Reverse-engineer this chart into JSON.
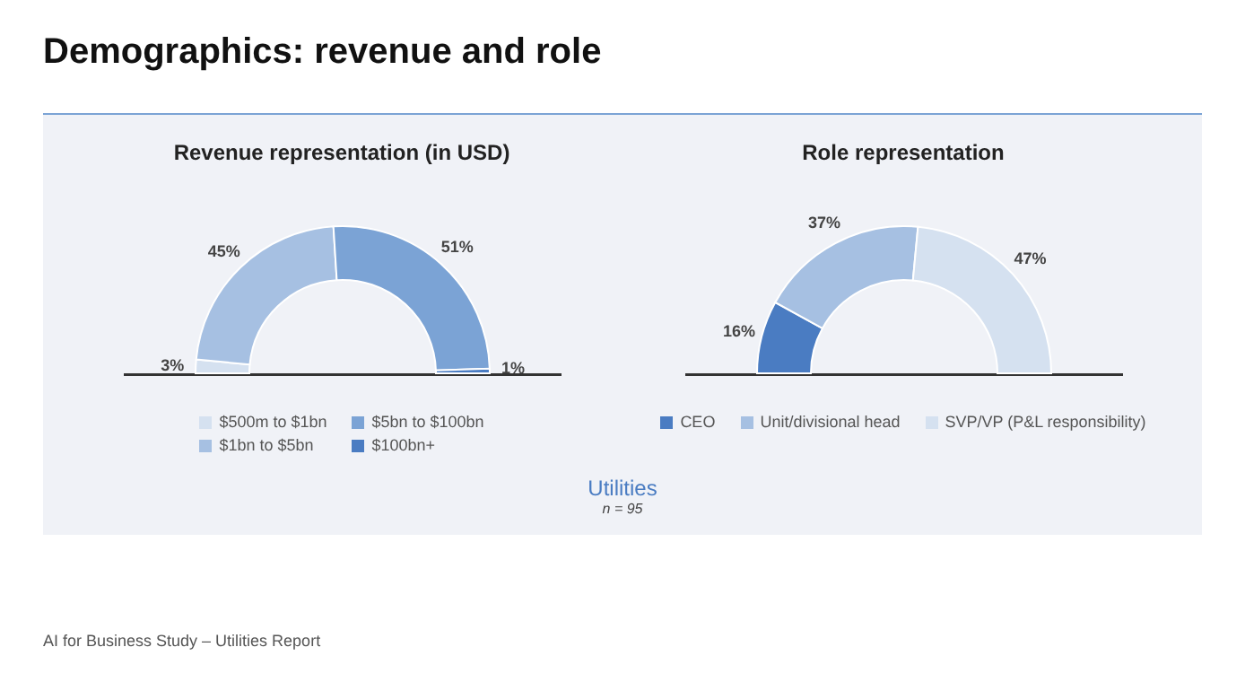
{
  "chart_data": [
    {
      "type": "donut",
      "title": "Revenue representation (in USD)",
      "categories": [
        "$500m to $1bn",
        "$1bn to $5bn",
        "$5bn to $100bn",
        "$100bn+"
      ],
      "values": [
        3,
        45,
        51,
        1
      ],
      "value_labels": [
        "3%",
        "45%",
        "51%",
        "1%"
      ],
      "colors": [
        "#d5e1f0",
        "#a6c0e2",
        "#7ba3d5",
        "#4a7cc2"
      ],
      "legend": "bottom",
      "annotations": [
        "Demographics: revenue and role",
        "Utilities",
        "n = 95",
        "AI for Business Study – Utilities Report"
      ]
    },
    {
      "type": "donut",
      "title": "Role representation",
      "categories": [
        "CEO",
        "Unit/divisional head",
        "SVP/VP (P&L responsibility)"
      ],
      "values": [
        16,
        37,
        47
      ],
      "value_labels": [
        "16%",
        "37%",
        "47%"
      ],
      "colors": [
        "#4a7cc2",
        "#a6c0e2",
        "#d5e1f0"
      ],
      "legend": "bottom"
    }
  ]
}
